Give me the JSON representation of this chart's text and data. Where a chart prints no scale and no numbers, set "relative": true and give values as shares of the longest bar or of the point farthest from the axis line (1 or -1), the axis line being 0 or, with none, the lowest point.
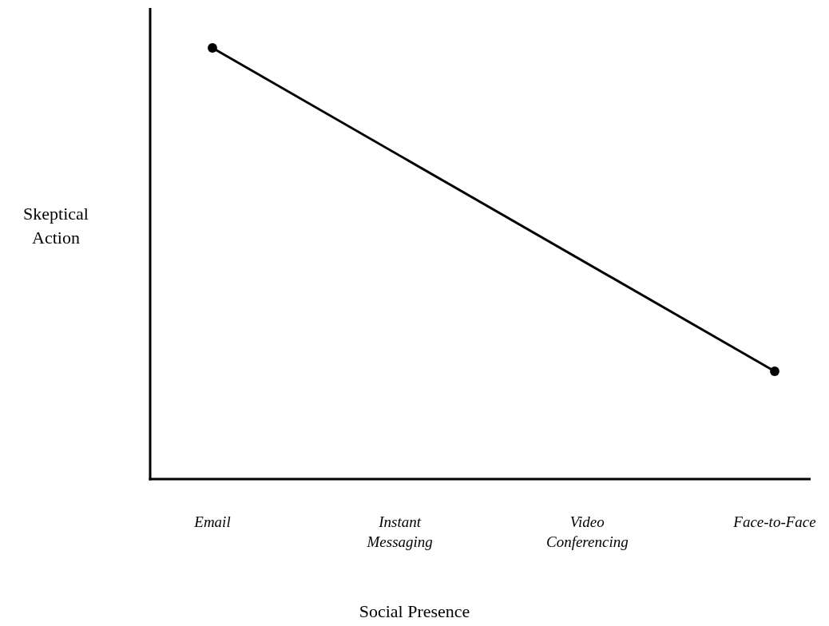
{
  "chart_data": {
    "type": "line",
    "relative": true,
    "xlabel": "Social Presence",
    "ylabel": "Skeptical Action",
    "categories": [
      "Email",
      "Instant Messaging",
      "Video Conferencing",
      "Face-to-Face"
    ],
    "series": [
      {
        "color": "#000000",
        "values": [
          1,
          null,
          null,
          0.25
        ]
      }
    ],
    "marker": "circle",
    "line_style": "solid"
  }
}
